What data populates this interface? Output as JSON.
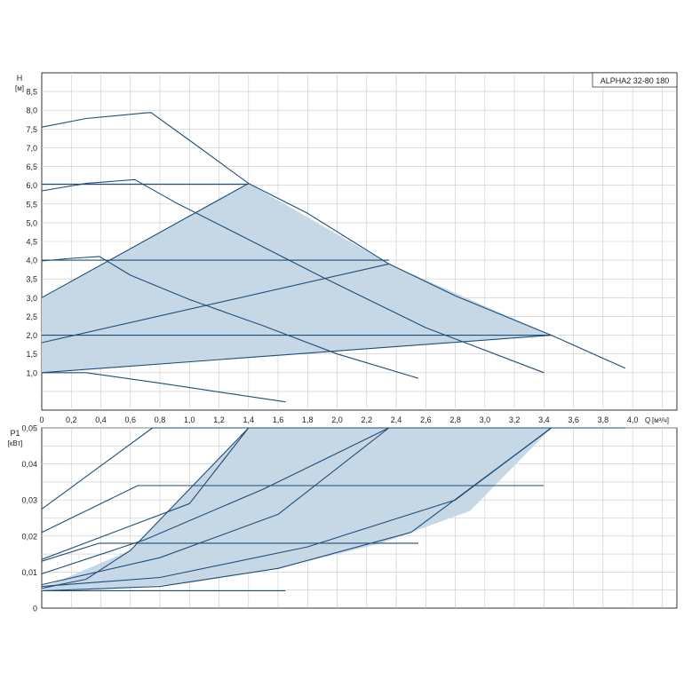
{
  "chart_data": [
    {
      "type": "line",
      "model_label": "ALPHA2 32-80 180",
      "ylabel": "H",
      "yunit": "[м]",
      "xlabel": "Q",
      "xunit": "[м³/ч]",
      "xlim": [
        0,
        4.3
      ],
      "ylim": [
        0,
        9
      ],
      "x_ticks": [
        "0",
        "0,2",
        "0,4",
        "0,6",
        "0,8",
        "1,0",
        "1,2",
        "1,4",
        "1,6",
        "1,8",
        "2,0",
        "2,2",
        "2,4",
        "2,6",
        "2,8",
        "3,0",
        "3,2",
        "3,4",
        "3,6",
        "3,8",
        "4,0"
      ],
      "y_ticks": [
        "1,0",
        "1,5",
        "2,0",
        "2,5",
        "3,0",
        "3,5",
        "4,0",
        "4,5",
        "5,0",
        "5,5",
        "6,0",
        "6,5",
        "7,0",
        "7,5",
        "8,0",
        "8,5"
      ],
      "grid": true,
      "shaded_region": {
        "points": [
          [
            0,
            1.0
          ],
          [
            0,
            3.0
          ],
          [
            1.4,
            6.05
          ],
          [
            2.35,
            3.9
          ],
          [
            3.45,
            2.0
          ],
          [
            0,
            1.0
          ]
        ]
      },
      "series": [
        {
          "points": [
            [
              0,
              7.55
            ],
            [
              0.3,
              7.78
            ],
            [
              0.7,
              7.93
            ],
            [
              0.74,
              7.94
            ],
            [
              1.0,
              7.2
            ],
            [
              1.4,
              6.05
            ],
            [
              1.8,
              5.25
            ],
            [
              2.35,
              3.9
            ],
            [
              2.8,
              3.05
            ],
            [
              3.45,
              2.0
            ],
            [
              3.95,
              1.12
            ]
          ]
        },
        {
          "points": [
            [
              0,
              5.85
            ],
            [
              0.3,
              6.05
            ],
            [
              0.63,
              6.15
            ],
            [
              0.9,
              5.55
            ],
            [
              1.3,
              4.75
            ],
            [
              1.9,
              3.55
            ],
            [
              2.6,
              2.2
            ],
            [
              3.4,
              1.0
            ]
          ]
        },
        {
          "points": [
            [
              0,
              3.98
            ],
            [
              0.2,
              4.05
            ],
            [
              0.39,
              4.1
            ],
            [
              0.6,
              3.6
            ],
            [
              1.0,
              2.95
            ],
            [
              1.5,
              2.25
            ],
            [
              2.0,
              1.5
            ],
            [
              2.55,
              0.85
            ]
          ]
        },
        {
          "points": [
            [
              0,
              1.0
            ],
            [
              0.3,
              1.0
            ],
            [
              0.8,
              0.72
            ],
            [
              1.65,
              0.22
            ]
          ]
        },
        {
          "points": [
            [
              0,
              6.03
            ],
            [
              1.4,
              6.03
            ]
          ]
        },
        {
          "points": [
            [
              0,
              4.0
            ],
            [
              2.35,
              4.0
            ]
          ]
        },
        {
          "points": [
            [
              0,
              2.0
            ],
            [
              3.45,
              2.0
            ]
          ]
        },
        {
          "points": [
            [
              0,
              3.0
            ],
            [
              1.4,
              6.05
            ]
          ]
        },
        {
          "points": [
            [
              0,
              1.8
            ],
            [
              2.35,
              3.9
            ]
          ]
        },
        {
          "points": [
            [
              0,
              1.0
            ],
            [
              3.45,
              2.0
            ]
          ]
        }
      ]
    },
    {
      "type": "line",
      "ylabel": "P1",
      "yunit": "[кВт]",
      "xlim": [
        0,
        4.3
      ],
      "ylim": [
        0,
        0.05
      ],
      "y_ticks": [
        "0",
        "0,01",
        "0,02",
        "0,03",
        "0,04",
        "0,05"
      ],
      "grid": true,
      "shaded_region": {
        "points": [
          [
            0,
            0.0048
          ],
          [
            0.4,
            0.0052
          ],
          [
            1.0,
            0.007
          ],
          [
            1.6,
            0.011
          ],
          [
            2.3,
            0.018
          ],
          [
            2.9,
            0.027
          ],
          [
            3.45,
            0.05
          ],
          [
            1.4,
            0.05
          ],
          [
            1.0,
            0.033
          ],
          [
            0.6,
            0.016
          ],
          [
            0,
            0.0055
          ]
        ]
      },
      "series": [
        {
          "points": [
            [
              0,
              0.0135
            ],
            [
              1.0,
              0.029
            ],
            [
              1.4,
              0.05
            ],
            [
              3.95,
              0.05
            ]
          ]
        },
        {
          "points": [
            [
              0,
              0.0275
            ],
            [
              0.75,
              0.05
            ],
            [
              1.4,
              0.05
            ]
          ]
        },
        {
          "points": [
            [
              0,
              0.021
            ],
            [
              0.65,
              0.034
            ],
            [
              3.4,
              0.034
            ]
          ]
        },
        {
          "points": [
            [
              0,
              0.013
            ],
            [
              0.39,
              0.018
            ],
            [
              2.55,
              0.018
            ]
          ]
        },
        {
          "points": [
            [
              0,
              0.0048
            ],
            [
              1.65,
              0.0048
            ]
          ]
        },
        {
          "points": [
            [
              0,
              0.0095
            ],
            [
              0.7,
              0.019
            ],
            [
              1.5,
              0.033
            ],
            [
              2.35,
              0.05
            ]
          ]
        },
        {
          "points": [
            [
              0,
              0.0065
            ],
            [
              0.8,
              0.014
            ],
            [
              1.6,
              0.026
            ],
            [
              2.35,
              0.05
            ]
          ]
        },
        {
          "points": [
            [
              0,
              0.006
            ],
            [
              0.8,
              0.0085
            ],
            [
              1.8,
              0.017
            ],
            [
              2.8,
              0.03
            ],
            [
              3.45,
              0.05
            ]
          ]
        },
        {
          "points": [
            [
              0,
              0.0048
            ],
            [
              0.8,
              0.006
            ],
            [
              1.6,
              0.011
            ],
            [
              2.5,
              0.021
            ],
            [
              3.45,
              0.05
            ]
          ]
        },
        {
          "points": [
            [
              0,
              0.0055
            ],
            [
              0.3,
              0.008
            ],
            [
              0.6,
              0.016
            ],
            [
              1.0,
              0.033
            ],
            [
              1.4,
              0.05
            ]
          ]
        }
      ]
    }
  ]
}
